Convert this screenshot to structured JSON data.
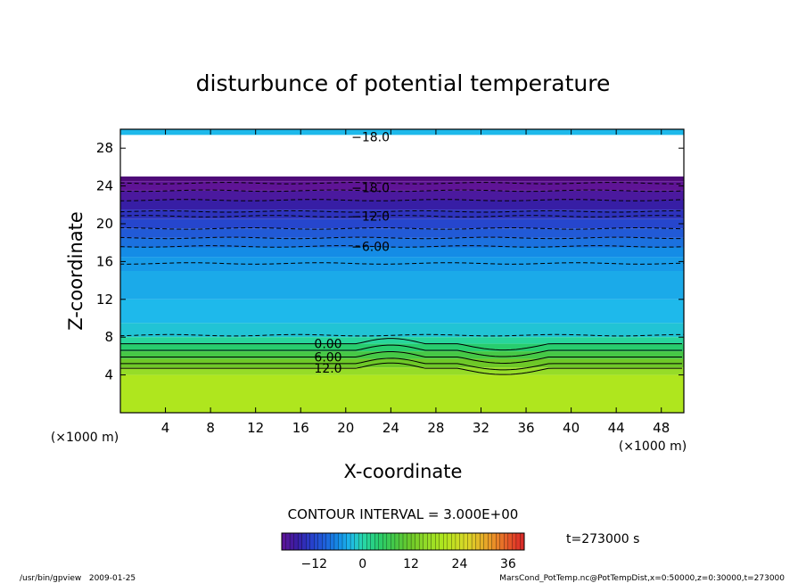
{
  "chart_data": {
    "type": "contour",
    "title": "disturbunce of potential temperature",
    "xlabel": "X-coordinate",
    "ylabel": "Z-coordinate",
    "x_unit": "(×1000 m)",
    "z_unit": "(×1000 m)",
    "xlim": [
      0,
      50
    ],
    "ylim": [
      0,
      30
    ],
    "x_ticks": [
      4,
      8,
      12,
      16,
      20,
      24,
      28,
      32,
      36,
      40,
      44,
      48
    ],
    "y_ticks": [
      4,
      8,
      12,
      16,
      20,
      24,
      28
    ],
    "contour_interval_label": "CONTOUR INTERVAL = 3.000E+00",
    "time_label": "t=273000 s",
    "colorbar": {
      "range": [
        -20,
        40
      ],
      "tick_values": [
        -12,
        0,
        12,
        24,
        36
      ],
      "tick_labels": [
        "−12",
        "0",
        "12",
        "24",
        "36"
      ]
    },
    "contour_labels": [
      {
        "text": "−18.0",
        "x": 20.5,
        "z": 29.2
      },
      {
        "text": "−18.0",
        "x": 20.5,
        "z": 23.8
      },
      {
        "text": "−12.0",
        "x": 20.5,
        "z": 20.8
      },
      {
        "text": "−6.00",
        "x": 20.5,
        "z": 17.6
      },
      {
        "text": "0.00",
        "x": 17.2,
        "z": 7.3
      },
      {
        "text": "6.00",
        "x": 17.2,
        "z": 5.9
      },
      {
        "text": "12.0",
        "x": 17.2,
        "z": 4.7
      }
    ],
    "bands": [
      {
        "z0": 29.4,
        "z1": 30.0,
        "value": -3
      },
      {
        "z0": 24.5,
        "z1": 25.0,
        "value": -22
      },
      {
        "z0": 23.5,
        "z1": 24.5,
        "value": -20
      },
      {
        "z0": 22.5,
        "z1": 23.5,
        "value": -18
      },
      {
        "z0": 21.5,
        "z1": 22.5,
        "value": -16
      },
      {
        "z0": 20.5,
        "z1": 21.5,
        "value": -14
      },
      {
        "z0": 19.5,
        "z1": 20.5,
        "value": -12
      },
      {
        "z0": 18.5,
        "z1": 19.5,
        "value": -10
      },
      {
        "z0": 17.5,
        "z1": 18.5,
        "value": -8
      },
      {
        "z0": 16.5,
        "z1": 17.5,
        "value": -6
      },
      {
        "z0": 15.0,
        "z1": 16.5,
        "value": -5
      },
      {
        "z0": 12.0,
        "z1": 15.0,
        "value": -4
      },
      {
        "z0": 9.5,
        "z1": 12.0,
        "value": -3
      },
      {
        "z0": 8.0,
        "z1": 9.5,
        "value": -2
      },
      {
        "z0": 7.3,
        "z1": 8.0,
        "value": 1
      },
      {
        "z0": 6.5,
        "z1": 7.3,
        "value": 4
      },
      {
        "z0": 5.7,
        "z1": 6.5,
        "value": 8
      },
      {
        "z0": 4.8,
        "z1": 5.7,
        "value": 12
      },
      {
        "z0": 4.0,
        "z1": 4.8,
        "value": 16
      },
      {
        "z0": 0.0,
        "z1": 4.0,
        "value": 20
      }
    ],
    "dashed_contours_z": [
      24.3,
      23.5,
      22.5,
      21.3,
      20.8,
      19.5,
      18.5,
      17.6,
      15.8,
      8.2
    ],
    "solid_contours_z": [
      7.3,
      6.6,
      5.9,
      5.2,
      4.7
    ]
  },
  "footer": {
    "left": "/usr/bin/gpview   2009-01-25",
    "right": "MarsCond_PotTemp.nc@PotTempDist,x=0:50000,z=0:30000,t=273000"
  }
}
